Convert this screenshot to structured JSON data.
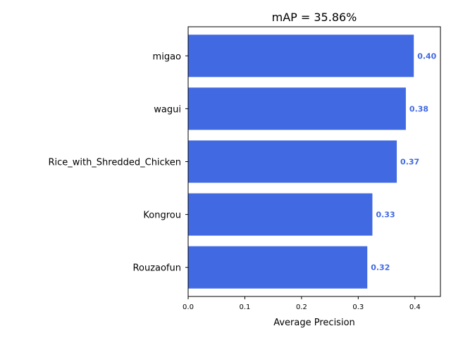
{
  "chart_data": {
    "type": "bar",
    "orientation": "horizontal",
    "title": "mAP = 35.86%",
    "xlabel": "Average Precision",
    "ylabel": "",
    "categories": [
      "migao",
      "wagui",
      "Rice_with_Shredded_Chicken",
      "Kongrou",
      "Rouzaofun"
    ],
    "values": [
      0.398,
      0.384,
      0.368,
      0.325,
      0.316
    ],
    "value_labels": [
      "0.40",
      "0.38",
      "0.37",
      "0.33",
      "0.32"
    ],
    "xlim": [
      0,
      0.445
    ],
    "xticks": [
      0.0,
      0.1,
      0.2,
      0.3,
      0.4
    ],
    "xtick_labels": [
      "0.0",
      "0.1",
      "0.2",
      "0.3",
      "0.4"
    ],
    "grid": false,
    "bar_color": "#4169e1",
    "label_color": "#4169e1"
  }
}
